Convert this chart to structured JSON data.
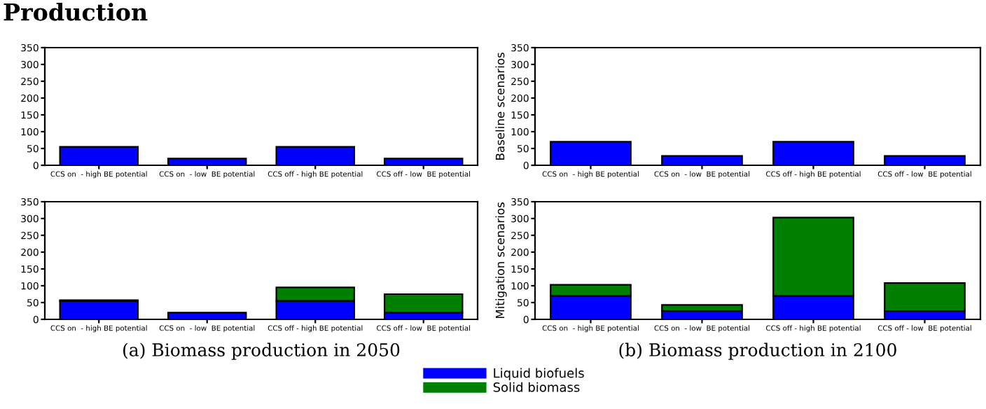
{
  "chart_data": [
    {
      "type": "bar",
      "title": "Production",
      "categories": [
        "CCS on  - high BE potential",
        "CCS on  - low  BE potential",
        "CCS off - high BE potential",
        "CCS off - low  BE potential"
      ],
      "stacked": true,
      "ylim": [
        0,
        350
      ],
      "yticks": [
        0,
        50,
        100,
        150,
        200,
        250,
        300,
        350
      ],
      "grid": false,
      "legend": false,
      "series": [
        {
          "color": "#0000ff",
          "values": [
            55,
            20,
            55,
            20
          ]
        }
      ]
    },
    {
      "type": "bar",
      "ylabel": "Baseline scenarios",
      "categories": [
        "CCS on  - high BE potential",
        "CCS on  - low  BE potential",
        "CCS off - high BE potential",
        "CCS off - low  BE potential"
      ],
      "stacked": true,
      "ylim": [
        0,
        350
      ],
      "yticks": [
        0,
        50,
        100,
        150,
        200,
        250,
        300,
        350
      ],
      "grid": false,
      "legend": false,
      "series": [
        {
          "color": "#0000ff",
          "values": [
            70,
            28,
            70,
            28
          ]
        }
      ]
    },
    {
      "type": "bar",
      "categories": [
        "CCS on  - high BE potential",
        "CCS on  - low  BE potential",
        "CCS off - high BE potential",
        "CCS off - low  BE potential"
      ],
      "stacked": true,
      "ylim": [
        0,
        350
      ],
      "yticks": [
        0,
        50,
        100,
        150,
        200,
        250,
        300,
        350
      ],
      "grid": false,
      "legend": false,
      "annotations": [
        "(a) Biomass production in 2050"
      ],
      "series": [
        {
          "color": "#0000ff",
          "values": [
            55,
            20,
            55,
            20
          ]
        },
        {
          "color": "#007f00",
          "values": [
            2,
            null,
            40,
            55
          ]
        }
      ]
    },
    {
      "type": "bar",
      "ylabel": "Mitigation scenarios",
      "categories": [
        "CCS on  - high BE potential",
        "CCS on  - low  BE potential",
        "CCS off - high BE potential",
        "CCS off - low  BE potential"
      ],
      "stacked": true,
      "ylim": [
        0,
        350
      ],
      "yticks": [
        0,
        50,
        100,
        150,
        200,
        250,
        300,
        350
      ],
      "grid": false,
      "legend": "bottom",
      "annotations": [
        "(b) Biomass production in 2100"
      ],
      "series": [
        {
          "name": "Liquid biofuels",
          "color": "#0000ff",
          "values": [
            70,
            25,
            70,
            25
          ]
        },
        {
          "name": "Solid biomass",
          "color": "#007f00",
          "values": [
            33,
            18,
            233,
            83
          ]
        }
      ]
    }
  ]
}
